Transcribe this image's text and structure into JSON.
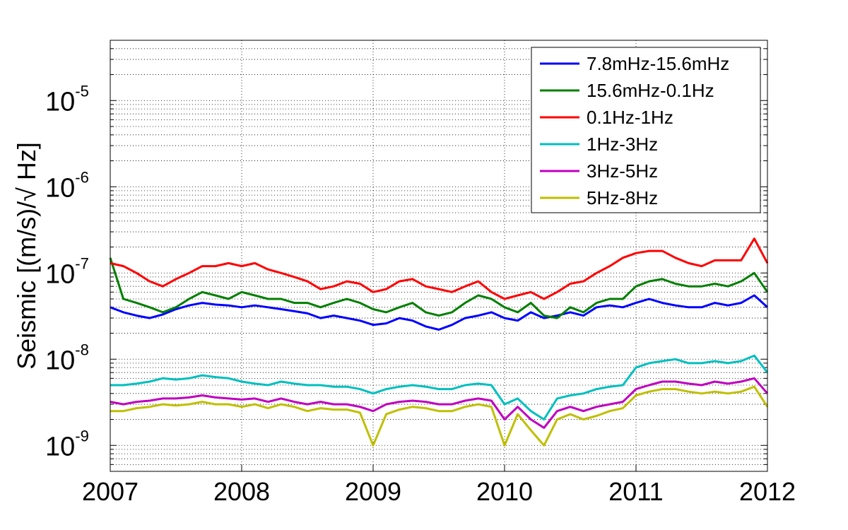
{
  "chart_data": {
    "type": "line",
    "title": "",
    "xlabel": "",
    "ylabel": "Seismic [(m/s)/√ Hz]",
    "xscale": "linear",
    "yscale": "log",
    "xlim": [
      2007,
      2012
    ],
    "ylim": [
      5e-10,
      5e-05
    ],
    "grid": true,
    "legend_position": "top-right",
    "x_ticks": [
      2007,
      2008,
      2009,
      2010,
      2011,
      2012
    ],
    "x_tick_labels": [
      "2007",
      "2008",
      "2009",
      "2010",
      "2011",
      "2012"
    ],
    "y_ticks": [
      {
        "base": "10",
        "exp": "-9",
        "value": 1e-09
      },
      {
        "base": "10",
        "exp": "-8",
        "value": 1e-08
      },
      {
        "base": "10",
        "exp": "-7",
        "value": 1e-07
      },
      {
        "base": "10",
        "exp": "-6",
        "value": 1e-06
      },
      {
        "base": "10",
        "exp": "-5",
        "value": 1e-05
      }
    ],
    "x": [
      2007.0,
      2007.1,
      2007.2,
      2007.3,
      2007.4,
      2007.5,
      2007.6,
      2007.7,
      2007.8,
      2007.9,
      2008.0,
      2008.1,
      2008.2,
      2008.3,
      2008.4,
      2008.5,
      2008.6,
      2008.7,
      2008.8,
      2008.9,
      2009.0,
      2009.1,
      2009.2,
      2009.3,
      2009.4,
      2009.5,
      2009.6,
      2009.7,
      2009.8,
      2009.9,
      2010.0,
      2010.1,
      2010.2,
      2010.3,
      2010.4,
      2010.5,
      2010.6,
      2010.7,
      2010.8,
      2010.9,
      2011.0,
      2011.1,
      2011.2,
      2011.3,
      2011.4,
      2011.5,
      2011.6,
      2011.7,
      2011.8,
      2011.9,
      2012.0
    ],
    "series": [
      {
        "name": "7.8mHz-15.6mHz",
        "color": "#0000ff",
        "values": [
          4e-08,
          3.5e-08,
          3.2e-08,
          3e-08,
          3.3e-08,
          3.8e-08,
          4.2e-08,
          4.5e-08,
          4.3e-08,
          4.2e-08,
          4e-08,
          4.2e-08,
          4e-08,
          3.8e-08,
          3.6e-08,
          3.4e-08,
          3e-08,
          3.2e-08,
          3e-08,
          2.8e-08,
          2.5e-08,
          2.6e-08,
          3e-08,
          2.8e-08,
          2.4e-08,
          2.2e-08,
          2.5e-08,
          3e-08,
          3.2e-08,
          3.5e-08,
          3e-08,
          2.8e-08,
          3.5e-08,
          3e-08,
          3.2e-08,
          3.5e-08,
          3.2e-08,
          4e-08,
          4.2e-08,
          4e-08,
          4.5e-08,
          5e-08,
          4.5e-08,
          4.2e-08,
          4e-08,
          4e-08,
          4.5e-08,
          4.2e-08,
          4.5e-08,
          5.5e-08,
          4e-08
        ]
      },
      {
        "name": "15.6mHz-0.1Hz",
        "color": "#007f00",
        "values": [
          1.5e-07,
          5e-08,
          4.5e-08,
          4e-08,
          3.5e-08,
          4e-08,
          5e-08,
          6e-08,
          5.5e-08,
          5e-08,
          6e-08,
          5.5e-08,
          5e-08,
          5e-08,
          4.5e-08,
          4.5e-08,
          4e-08,
          4.5e-08,
          5e-08,
          4.5e-08,
          3.8e-08,
          3.5e-08,
          4e-08,
          4.5e-08,
          3.5e-08,
          3.2e-08,
          3.5e-08,
          4.5e-08,
          5.5e-08,
          5e-08,
          4e-08,
          3.5e-08,
          4.5e-08,
          3.2e-08,
          3e-08,
          4e-08,
          3.5e-08,
          4.5e-08,
          5e-08,
          5e-08,
          7e-08,
          8e-08,
          8.5e-08,
          7.5e-08,
          7e-08,
          7e-08,
          7.5e-08,
          7e-08,
          8e-08,
          1e-07,
          6e-08
        ]
      },
      {
        "name": "0.1Hz-1Hz",
        "color": "#ff0000",
        "values": [
          1.3e-07,
          1.2e-07,
          1e-07,
          8e-08,
          7e-08,
          8.5e-08,
          1e-07,
          1.2e-07,
          1.2e-07,
          1.3e-07,
          1.2e-07,
          1.3e-07,
          1.1e-07,
          1e-07,
          9e-08,
          8e-08,
          6.5e-08,
          7e-08,
          8e-08,
          7.5e-08,
          6e-08,
          6.5e-08,
          8e-08,
          8.5e-08,
          7e-08,
          6.5e-08,
          6e-08,
          7e-08,
          8e-08,
          6e-08,
          5e-08,
          5.5e-08,
          6e-08,
          5e-08,
          6e-08,
          7.5e-08,
          8e-08,
          1e-07,
          1.2e-07,
          1.5e-07,
          1.7e-07,
          1.8e-07,
          1.8e-07,
          1.5e-07,
          1.3e-07,
          1.2e-07,
          1.4e-07,
          1.4e-07,
          1.4e-07,
          2.5e-07,
          1.3e-07
        ]
      },
      {
        "name": "1Hz-3Hz",
        "color": "#00bfbf",
        "values": [
          5e-09,
          5e-09,
          5.2e-09,
          5.5e-09,
          6e-09,
          5.8e-09,
          6e-09,
          6.5e-09,
          6.2e-09,
          6e-09,
          5.5e-09,
          5.2e-09,
          5e-09,
          5.5e-09,
          5.2e-09,
          5e-09,
          5e-09,
          4.8e-09,
          4.8e-09,
          4.5e-09,
          4e-09,
          4.5e-09,
          4.8e-09,
          5e-09,
          4.8e-09,
          4.5e-09,
          4.5e-09,
          5e-09,
          5.2e-09,
          5e-09,
          3e-09,
          3.5e-09,
          2.5e-09,
          2e-09,
          3.5e-09,
          3.8e-09,
          4e-09,
          4.5e-09,
          4.8e-09,
          5e-09,
          8e-09,
          9e-09,
          9.5e-09,
          1e-08,
          9e-09,
          9e-09,
          9.5e-09,
          9e-09,
          9.5e-09,
          1.1e-08,
          7e-09
        ]
      },
      {
        "name": "3Hz-5Hz",
        "color": "#bf00bf",
        "values": [
          3.2e-09,
          3e-09,
          3.2e-09,
          3.3e-09,
          3.5e-09,
          3.5e-09,
          3.6e-09,
          3.8e-09,
          3.6e-09,
          3.5e-09,
          3.4e-09,
          3.5e-09,
          3.2e-09,
          3.5e-09,
          3.2e-09,
          3e-09,
          3.2e-09,
          3e-09,
          3e-09,
          2.8e-09,
          2.5e-09,
          3e-09,
          3.2e-09,
          3.3e-09,
          3.2e-09,
          3e-09,
          3e-09,
          3.3e-09,
          3.5e-09,
          3.3e-09,
          2e-09,
          2.8e-09,
          2e-09,
          1.6e-09,
          2.5e-09,
          2.8e-09,
          2.5e-09,
          2.8e-09,
          3e-09,
          3.2e-09,
          4.5e-09,
          5e-09,
          5.5e-09,
          5.5e-09,
          5.2e-09,
          5e-09,
          5.5e-09,
          5.2e-09,
          5.5e-09,
          6e-09,
          4e-09
        ]
      },
      {
        "name": "5Hz-8Hz",
        "color": "#bfbf00",
        "values": [
          2.5e-09,
          2.5e-09,
          2.7e-09,
          2.8e-09,
          3e-09,
          2.9e-09,
          3e-09,
          3.2e-09,
          3e-09,
          3e-09,
          2.8e-09,
          3e-09,
          2.7e-09,
          3e-09,
          2.8e-09,
          2.5e-09,
          2.7e-09,
          2.6e-09,
          2.6e-09,
          2.4e-09,
          1e-09,
          2.3e-09,
          2.6e-09,
          2.8e-09,
          2.7e-09,
          2.5e-09,
          2.5e-09,
          2.8e-09,
          3e-09,
          2.8e-09,
          1e-09,
          2.3e-09,
          1.5e-09,
          1e-09,
          2e-09,
          2.3e-09,
          2e-09,
          2.2e-09,
          2.5e-09,
          2.7e-09,
          3.8e-09,
          4.2e-09,
          4.5e-09,
          4.5e-09,
          4.2e-09,
          4e-09,
          4.2e-09,
          4e-09,
          4.2e-09,
          4.8e-09,
          2.8e-09
        ]
      }
    ]
  }
}
